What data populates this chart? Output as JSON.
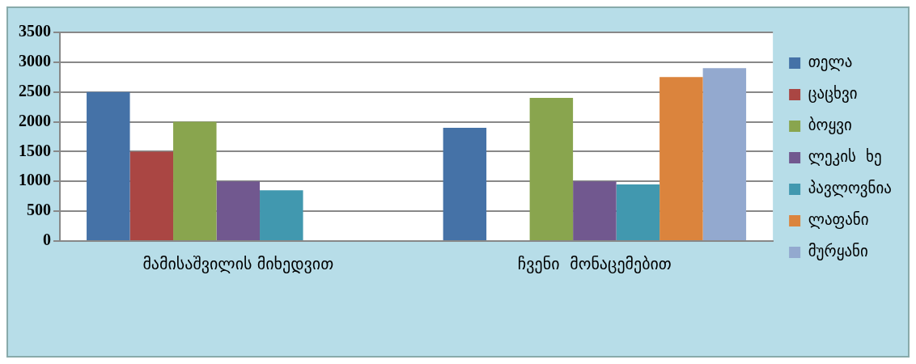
{
  "chart_data": {
    "type": "bar",
    "categories": [
      "მამისაშვილის მიხედვით",
      "ჩვენი  მონაცემებით"
    ],
    "series": [
      {
        "name": "თელა",
        "color": "#4572a7",
        "values": [
          2500,
          1900
        ]
      },
      {
        "name": "ცაცხვი",
        "color": "#aa4643",
        "values": [
          1500,
          null
        ]
      },
      {
        "name": "ბოყვი",
        "color": "#89a54e",
        "values": [
          2000,
          2400
        ]
      },
      {
        "name": "ლეკის  ხე",
        "color": "#71588f",
        "values": [
          1000,
          1000
        ]
      },
      {
        "name": "პავლოვნია",
        "color": "#4198af",
        "values": [
          850,
          950
        ]
      },
      {
        "name": "ლაფანი",
        "color": "#db843d",
        "values": [
          null,
          2750
        ]
      },
      {
        "name": "მურყანი",
        "color": "#93a9cf",
        "values": [
          null,
          2900
        ]
      }
    ],
    "ylim": [
      0,
      3500
    ],
    "yticks": [
      0,
      500,
      1000,
      1500,
      2000,
      2500,
      3000,
      3500
    ],
    "grid": "y",
    "legend": "right"
  }
}
